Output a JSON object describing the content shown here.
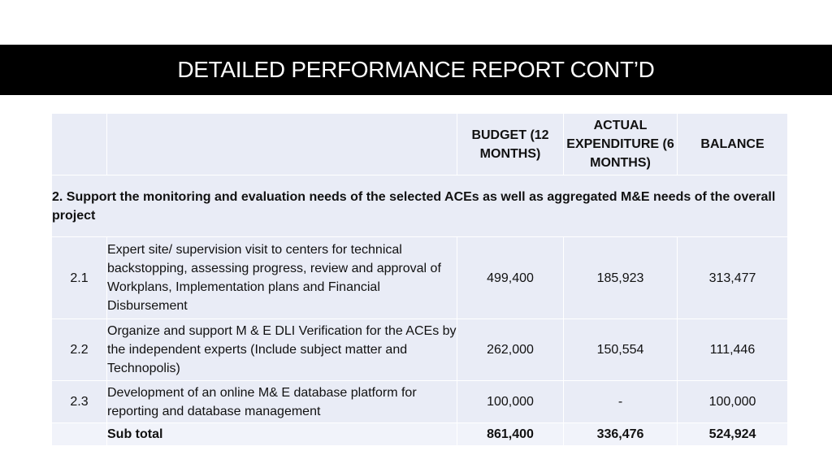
{
  "slide": {
    "title": "DETAILED PERFORMANCE REPORT CONT’D"
  },
  "table": {
    "headers": {
      "index": "",
      "description": "",
      "budget": "BUDGET (12 MONTHS)",
      "actual": "ACTUAL EXPENDITURE (6 MONTHS)",
      "balance": "BALANCE"
    },
    "section_title": "2. Support the monitoring and evaluation needs of the selected ACEs as well as aggregated M&E needs of the overall project",
    "rows": [
      {
        "index": "2.1",
        "description": "Expert site/ supervision visit to centers for technical backstopping, assessing progress, review and approval of Workplans, Implementation plans and Financial Disbursement",
        "budget": "499,400",
        "actual": "185,923",
        "balance": "313,477"
      },
      {
        "index": "2.2",
        "description": "Organize and support M & E DLI Verification  for the ACEs by the independent experts (Include subject matter and Technopolis)",
        "budget": "262,000",
        "actual": "150,554",
        "balance": "111,446"
      },
      {
        "index": "2.3",
        "description": "Development of an online  M& E database platform for reporting and database management",
        "budget": "100,000",
        "actual": "-",
        "balance": "100,000"
      }
    ],
    "subtotal": {
      "label": "Sub total",
      "budget": "861,400",
      "actual": "336,476",
      "balance": "524,924"
    }
  }
}
